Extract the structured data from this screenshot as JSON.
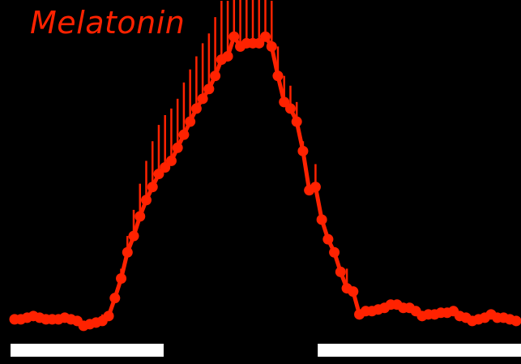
{
  "chart_data": {
    "type": "line",
    "title": "Melatonin",
    "xlabel": "",
    "ylabel": "",
    "xlim": [
      0,
      80
    ],
    "ylim": [
      0,
      100
    ],
    "grid": false,
    "colors": {
      "series": "#ff2200",
      "background": "#000000",
      "light_bar": "#ffffff"
    },
    "series": [
      {
        "x": [
          0,
          1,
          2,
          3,
          4,
          5,
          6,
          7,
          8,
          9,
          10,
          11,
          12,
          13,
          14,
          15,
          16,
          17,
          18,
          19,
          20,
          21,
          22,
          23,
          24,
          25,
          26,
          27,
          28,
          29,
          30,
          31,
          32,
          33,
          34,
          35,
          36,
          37,
          38,
          39,
          40,
          41,
          42,
          43,
          44,
          45,
          46,
          47,
          48,
          49,
          50,
          51,
          52,
          53,
          54,
          55,
          56,
          57,
          58,
          59,
          60,
          61,
          62,
          63,
          64,
          65,
          66,
          67,
          68,
          69,
          70,
          71,
          72,
          73,
          74,
          75,
          76,
          77,
          78,
          79,
          80
        ],
        "values": [
          4.5,
          4.5,
          5,
          5.5,
          5,
          4.5,
          4.5,
          4.5,
          5,
          4.5,
          4,
          2.5,
          3,
          3.5,
          4,
          5.5,
          11,
          17,
          25,
          30,
          36,
          41,
          45,
          49,
          51,
          53,
          57,
          61,
          65,
          69,
          72,
          75,
          79,
          84,
          85,
          91,
          88,
          89,
          89,
          89,
          91,
          88,
          79,
          71,
          69,
          65,
          56,
          44,
          45,
          35,
          29,
          25,
          19,
          14,
          13,
          6,
          7,
          7,
          7.5,
          8,
          9,
          9,
          8,
          8,
          7,
          5.5,
          6,
          6,
          6.5,
          6.5,
          7,
          5.5,
          5,
          4,
          4.5,
          5,
          6,
          5,
          5,
          4.5,
          4
        ],
        "error_upper": [
          0,
          0,
          0,
          0,
          0,
          0,
          0,
          0,
          1,
          0,
          0,
          0,
          0,
          0,
          2,
          0,
          0,
          3,
          5,
          8,
          10,
          12,
          14,
          15,
          16,
          16,
          15,
          16,
          16,
          16,
          17,
          17,
          18,
          18,
          17,
          17,
          16,
          16,
          16,
          16,
          16,
          14,
          9,
          8,
          7,
          6,
          3,
          2,
          7,
          0,
          0,
          0,
          0,
          6,
          0,
          0,
          0,
          0,
          0,
          0,
          0,
          0,
          0,
          0,
          0,
          0,
          0,
          0,
          0,
          0,
          0,
          0,
          0,
          0,
          0,
          0,
          0,
          0,
          0,
          0,
          0
        ],
        "error_lower": [
          0,
          0,
          0,
          0,
          0,
          0,
          0,
          0,
          0,
          0,
          0,
          0,
          0,
          0,
          0,
          0,
          0,
          0,
          0,
          0,
          0,
          0,
          0,
          0,
          0,
          0,
          0,
          0,
          0,
          0,
          0,
          0,
          0,
          0,
          0,
          0,
          0,
          0,
          0,
          0,
          0,
          0,
          0,
          0,
          0,
          0,
          0,
          0,
          0,
          0,
          0,
          0,
          0,
          0,
          0,
          0,
          0,
          0,
          0,
          0,
          0,
          0,
          0,
          0,
          0,
          0,
          0,
          0,
          0,
          0,
          0,
          0,
          0,
          0,
          0,
          0,
          0,
          0,
          0,
          0,
          0
        ]
      }
    ],
    "light_bars": [
      {
        "x_start": 0,
        "x_end": 23
      },
      {
        "x_start": 49,
        "x_end": 80
      }
    ]
  }
}
